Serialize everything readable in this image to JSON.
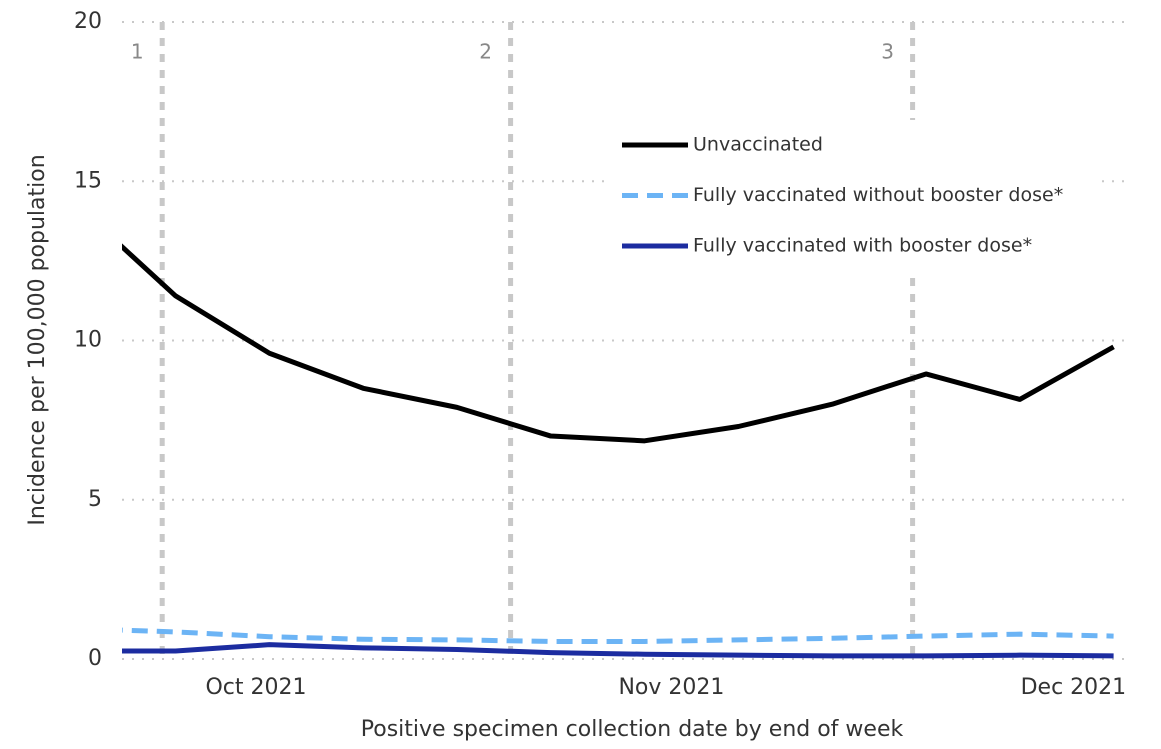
{
  "chart_data": {
    "type": "line",
    "y_label": "Incidence per 100,000 population",
    "x_label": "Positive specimen collection date by end of week",
    "x": [
      "2021-09-18",
      "2021-09-25",
      "2021-10-02",
      "2021-10-09",
      "2021-10-16",
      "2021-10-23",
      "2021-10-30",
      "2021-11-06",
      "2021-11-13",
      "2021-11-20",
      "2021-11-27",
      "2021-12-04"
    ],
    "series": [
      {
        "name": "Unvaccinated",
        "color": "#000000",
        "dash": false,
        "values": [
          14.1,
          11.4,
          9.6,
          8.5,
          7.9,
          7.0,
          6.85,
          7.3,
          8.0,
          8.95,
          8.15,
          9.8
        ]
      },
      {
        "name": "Fully vaccinated without booster dose*",
        "color": "#6cb4f5",
        "dash": true,
        "values": [
          0.95,
          0.85,
          0.7,
          0.62,
          0.6,
          0.55,
          0.55,
          0.6,
          0.65,
          0.72,
          0.78,
          0.72
        ]
      },
      {
        "name": "Fully vaccinated with booster dose*",
        "color": "#1c2ca0",
        "dash": false,
        "values": [
          0.25,
          0.25,
          0.45,
          0.35,
          0.3,
          0.2,
          0.15,
          0.12,
          0.1,
          0.1,
          0.12,
          0.1
        ]
      }
    ],
    "xlim": [
      "2021-09-21",
      "2021-12-05"
    ],
    "xticks": [
      {
        "value": "2021-10-01",
        "label": "Oct 2021"
      },
      {
        "value": "2021-11-01",
        "label": "Nov 2021"
      },
      {
        "value": "2021-12-01",
        "label": "Dec 2021"
      }
    ],
    "ylim": [
      0,
      20
    ],
    "yticks": [
      0,
      5,
      10,
      15,
      20
    ],
    "grid": true,
    "annotations": [
      {
        "x": "2021-09-24",
        "label": "1"
      },
      {
        "x": "2021-10-20",
        "label": "2"
      },
      {
        "x": "2021-11-19",
        "label": "3"
      }
    ]
  }
}
